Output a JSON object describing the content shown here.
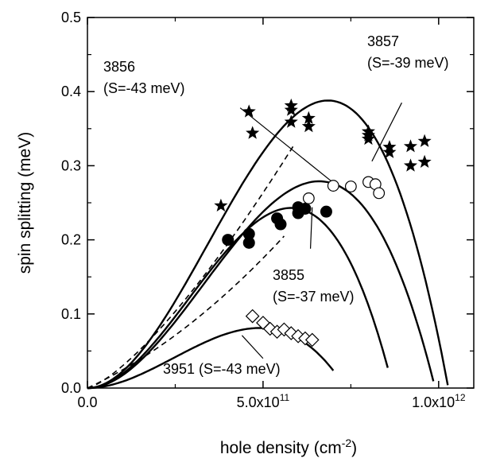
{
  "chart_data": {
    "type": "scatter",
    "xlabel": "hole density (cm",
    "xlabel_sup": "-2",
    "xlabel_close": ")",
    "ylabel": "spin splitting (meV)",
    "xlim": [
      0,
      1100000000000.0
    ],
    "ylim": [
      0,
      0.5
    ],
    "x_ticks": [
      {
        "value": 0,
        "label": "0.0"
      },
      {
        "value": 500000000000.0,
        "label": "5.0x10",
        "sup": "11"
      },
      {
        "value": 1000000000000.0,
        "label": "1.0x10",
        "sup": "12"
      }
    ],
    "y_ticks": [
      {
        "value": 0.0,
        "label": "0.0"
      },
      {
        "value": 0.1,
        "label": "0.1"
      },
      {
        "value": 0.2,
        "label": "0.2"
      },
      {
        "value": 0.3,
        "label": "0.3"
      },
      {
        "value": 0.4,
        "label": "0.4"
      },
      {
        "value": 0.5,
        "label": "0.5"
      }
    ],
    "series": [
      {
        "marker": "star",
        "points": [
          [
            380000000000.0,
            0.246
          ],
          [
            460000000000.0,
            0.373
          ],
          [
            470000000000.0,
            0.344
          ],
          [
            580000000000.0,
            0.381
          ],
          [
            580000000000.0,
            0.375
          ],
          [
            580000000000.0,
            0.359
          ],
          [
            630000000000.0,
            0.364
          ],
          [
            630000000000.0,
            0.353
          ],
          [
            800000000000.0,
            0.346
          ],
          [
            800000000000.0,
            0.341
          ],
          [
            800000000000.0,
            0.336
          ],
          [
            860000000000.0,
            0.325
          ],
          [
            860000000000.0,
            0.318
          ],
          [
            920000000000.0,
            0.326
          ],
          [
            960000000000.0,
            0.333
          ],
          [
            920000000000.0,
            0.3
          ],
          [
            960000000000.0,
            0.305
          ]
        ]
      },
      {
        "marker": "filled-circle",
        "points": [
          [
            400000000000.0,
            0.2
          ],
          [
            460000000000.0,
            0.208
          ],
          [
            460000000000.0,
            0.196
          ],
          [
            540000000000.0,
            0.229
          ],
          [
            550000000000.0,
            0.221
          ],
          [
            600000000000.0,
            0.244
          ],
          [
            600000000000.0,
            0.236
          ],
          [
            620000000000.0,
            0.242
          ],
          [
            680000000000.0,
            0.238
          ]
        ]
      },
      {
        "marker": "open-circle",
        "points": [
          [
            630000000000.0,
            0.256
          ],
          [
            700000000000.0,
            0.273
          ],
          [
            750000000000.0,
            0.272
          ],
          [
            800000000000.0,
            0.278
          ],
          [
            820000000000.0,
            0.275
          ],
          [
            830000000000.0,
            0.263
          ]
        ]
      },
      {
        "marker": "open-diamond",
        "points": [
          [
            470000000000.0,
            0.097
          ],
          [
            500000000000.0,
            0.088
          ],
          [
            520000000000.0,
            0.08
          ],
          [
            540000000000.0,
            0.076
          ],
          [
            560000000000.0,
            0.079
          ],
          [
            580000000000.0,
            0.074
          ],
          [
            600000000000.0,
            0.07
          ],
          [
            620000000000.0,
            0.067
          ],
          [
            640000000000.0,
            0.065
          ]
        ]
      }
    ],
    "curves": [
      {
        "style": "solid",
        "model": "peak",
        "peak_x": 685000000000.0,
        "peak_y": 0.388,
        "x_end": 1080000000000.0
      },
      {
        "style": "solid",
        "model": "peak",
        "peak_x": 660000000000.0,
        "peak_y": 0.279,
        "x_end": 1065000000000.0
      },
      {
        "style": "solid",
        "model": "peak",
        "peak_x": 580000000000.0,
        "peak_y": 0.243,
        "x_end": 855000000000.0
      },
      {
        "style": "solid",
        "model": "peak",
        "peak_x": 490000000000.0,
        "peak_y": 0.081,
        "x_end": 700000000000.0
      },
      {
        "style": "dashed",
        "model": "power",
        "k": 0.3,
        "exponent": 1.35,
        "x_end": 590000000000.0
      },
      {
        "style": "dashed",
        "model": "linear",
        "x_end": 560000000000.0,
        "y_end": 0.205
      }
    ],
    "annotations": [
      {
        "name": "label-3857",
        "lines": [
          "3857",
          "(S=-39 meV)"
        ],
        "pointer": [
          [
            895000000000.0,
            0.385
          ],
          [
            810000000000.0,
            0.306
          ]
        ]
      },
      {
        "name": "label-3856",
        "lines": [
          "3856",
          "(S=-43 meV)"
        ],
        "pointer": [
          [
            435000000000.0,
            0.378
          ],
          [
            700000000000.0,
            0.277
          ]
        ]
      },
      {
        "name": "label-3855",
        "lines": [
          "3855",
          "(S=-37 meV)"
        ],
        "pointer": [
          [
            635000000000.0,
            0.188
          ],
          [
            640000000000.0,
            0.244
          ]
        ]
      },
      {
        "name": "label-3951",
        "lines": [
          "3951 (S=-43 meV)"
        ],
        "pointer": [
          [
            500000000000.0,
            0.04
          ],
          [
            440000000000.0,
            0.071
          ]
        ]
      }
    ]
  }
}
